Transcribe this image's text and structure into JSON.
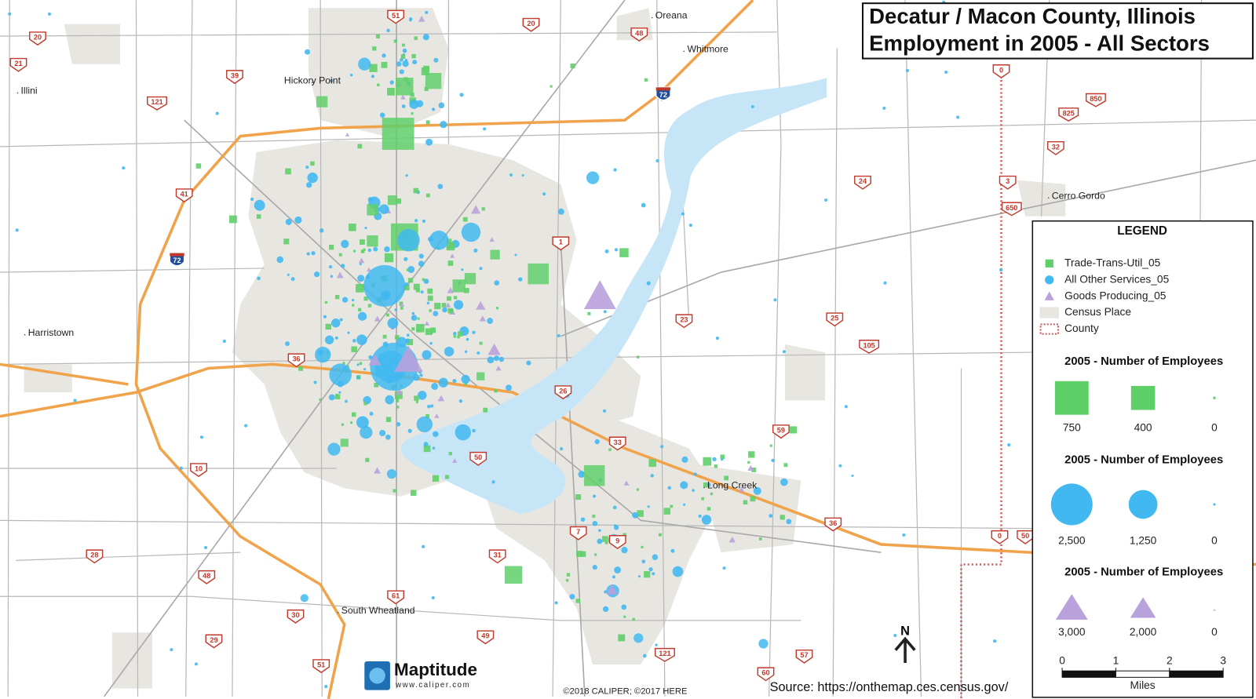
{
  "title": [
    "Decatur / Macon County, Illinois",
    "Employment in 2005 - All Sectors"
  ],
  "places": [
    "Oreana",
    "Whitmore",
    "Hickory Point",
    "Illini",
    "Cerro Gordo",
    "Harristown",
    "Long Creek",
    "South Wheatland"
  ],
  "routes": [
    "51",
    "20",
    "20",
    "48",
    "21",
    "39",
    "121",
    "72",
    "0",
    "850",
    "825",
    "32",
    "41",
    "72",
    "24",
    "3",
    "650",
    "1",
    "25",
    "23",
    "105",
    "36",
    "26",
    "59",
    "10",
    "50",
    "33",
    "36",
    "0",
    "50",
    "28",
    "7",
    "9",
    "31",
    "48",
    "61",
    "30",
    "29",
    "49",
    "121",
    "57",
    "51",
    "60"
  ],
  "legend": {
    "title": "LEGEND",
    "items": [
      "Trade-Trans-Util_05",
      "All Other Services_05",
      "Goods Producing_05",
      "Census Place",
      "County"
    ],
    "sections": [
      {
        "title": "2005 - Number of Employees",
        "labels": [
          "750",
          "400",
          "0"
        ]
      },
      {
        "title": "2005 - Number of Employees",
        "labels": [
          "2,500",
          "1,250",
          "0"
        ]
      },
      {
        "title": "2005 - Number of Employees",
        "labels": [
          "3,000",
          "2,000",
          "0"
        ]
      }
    ]
  },
  "scale": {
    "ticks": [
      0,
      1,
      2,
      3
    ],
    "unit": "Miles"
  },
  "north": "N",
  "logo": {
    "name": "Maptitude",
    "url": "www.caliper.com"
  },
  "credits": "©2018 CALIPER; ©2017 HERE",
  "source": "Source: https://onthemap.ces.census.gov/"
}
